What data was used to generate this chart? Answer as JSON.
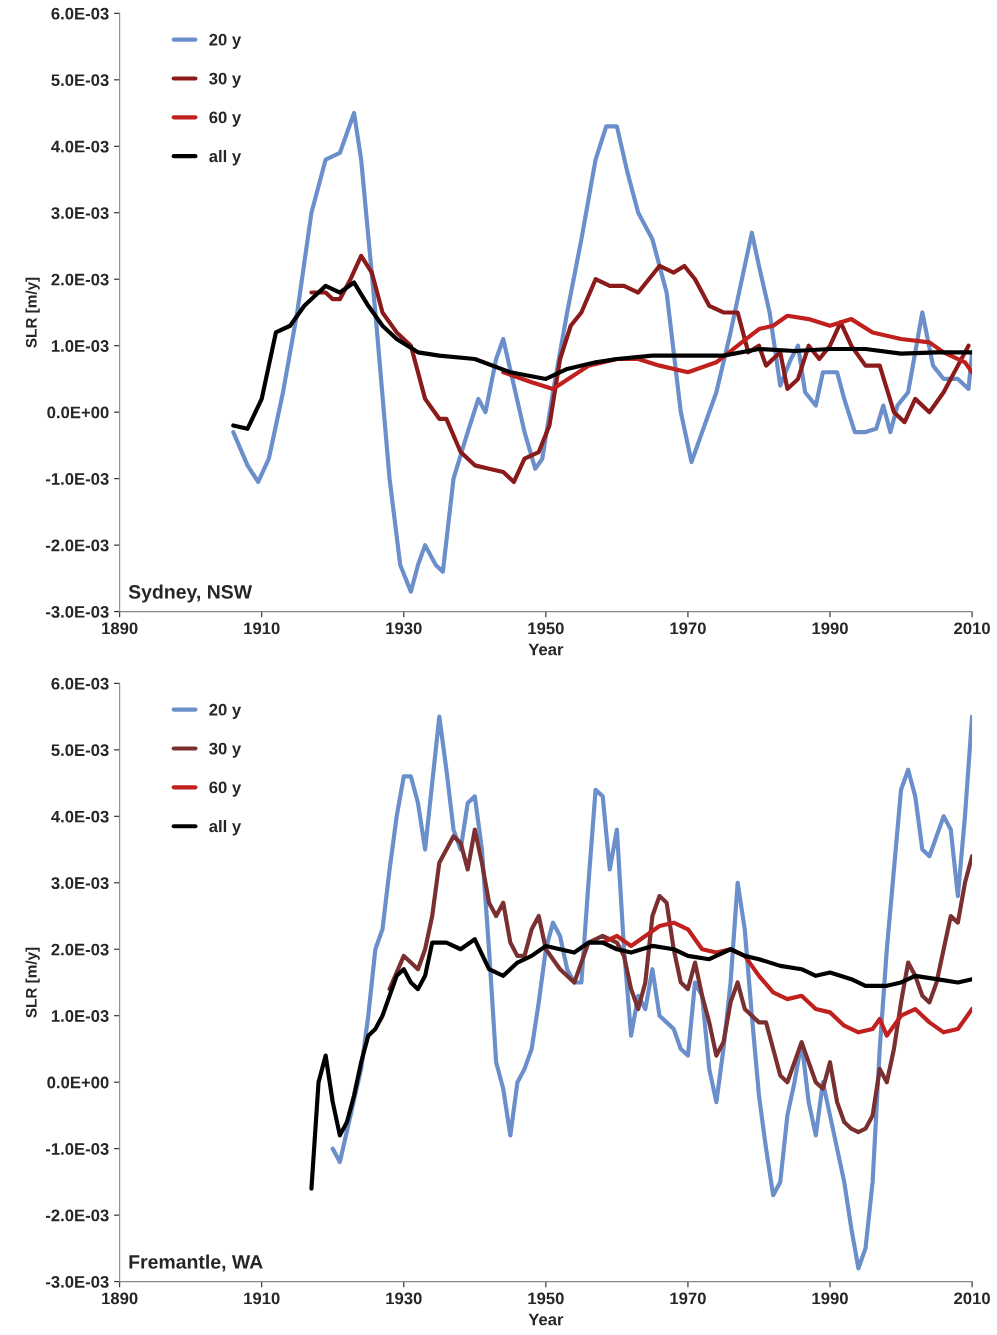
{
  "chart_data": [
    {
      "type": "line",
      "xlabel": "Year",
      "ylabel": "SLR [m/y]",
      "annotations": [
        "Sydney, NSW"
      ],
      "legend": "top left",
      "grid": false,
      "xlim": [
        1890,
        2010
      ],
      "xticks": [
        1890,
        1910,
        1930,
        1950,
        1970,
        1990,
        2010
      ],
      "ylim": [
        -0.003,
        0.006
      ],
      "yticks": [
        {
          "value": -0.003,
          "label": "-3.0E-03"
        },
        {
          "value": -0.002,
          "label": "-2.0E-03"
        },
        {
          "value": -0.001,
          "label": "-1.0E-03"
        },
        {
          "value": 0,
          "label": "0.0E+00"
        },
        {
          "value": 0.001,
          "label": "1.0E-03"
        },
        {
          "value": 0.002,
          "label": "2.0E-03"
        },
        {
          "value": 0.003,
          "label": "3.0E-03"
        },
        {
          "value": 0.004,
          "label": "4.0E-03"
        },
        {
          "value": 0.005,
          "label": "5.0E-03"
        },
        {
          "value": 0.006,
          "label": "6.0E-03"
        }
      ],
      "series": [
        {
          "name": "20 y",
          "color": "#6a8fca",
          "x": [
            1906,
            1908,
            1909.5,
            1911,
            1913,
            1915,
            1917,
            1918,
            1919,
            1921,
            1922,
            1923,
            1924,
            1926,
            1928,
            1929.5,
            1931,
            1932,
            1933,
            1934.5,
            1935.5,
            1937,
            1939,
            1940.5,
            1941.5,
            1943,
            1944,
            1945.5,
            1947,
            1948.5,
            1949.5,
            1951,
            1953,
            1955,
            1957,
            1958.5,
            1960,
            1961.5,
            1963,
            1965,
            1967,
            1969,
            1970.5,
            1972,
            1974,
            1976,
            1978,
            1979,
            1980,
            1981.5,
            1983,
            1984.5,
            1985.5,
            1986.5,
            1988,
            1989,
            1991,
            1992,
            1993.5,
            1995,
            1996.5,
            1997.5,
            1998.5,
            1999.5,
            2001,
            2003,
            2004.5,
            2006,
            2008,
            2009.5,
            2010
          ],
          "values": [
            -0.0003,
            -0.0008,
            -0.00105,
            -0.0007,
            0.0003,
            0.0015,
            0.003,
            0.0034,
            0.0038,
            0.0039,
            0.0042,
            0.0045,
            0.0038,
            0.0015,
            -0.001,
            -0.0023,
            -0.0027,
            -0.0023,
            -0.002,
            -0.0023,
            -0.0024,
            -0.001,
            -0.0003,
            0.0002,
            0.0,
            0.0008,
            0.0011,
            0.0004,
            -0.0003,
            -0.00085,
            -0.0007,
            0.0003,
            0.0015,
            0.0026,
            0.0038,
            0.0043,
            0.0043,
            0.0036,
            0.003,
            0.0026,
            0.0018,
            0.0,
            -0.00075,
            -0.0003,
            0.0003,
            0.0012,
            0.0022,
            0.0027,
            0.0022,
            0.0015,
            0.0004,
            0.0008,
            0.001,
            0.0003,
            0.0001,
            0.0006,
            0.0006,
            0.0002,
            -0.0003,
            -0.0003,
            -0.00025,
            0.0001,
            -0.0003,
            0.0001,
            0.0003,
            0.0015,
            0.0007,
            0.0005,
            0.0005,
            0.00035,
            0.0009
          ]
        },
        {
          "name": "30 y",
          "color": "#8b1a1a",
          "x": [
            1917,
            1919,
            1920,
            1921,
            1922.5,
            1924,
            1925.5,
            1927,
            1929,
            1931,
            1933,
            1935,
            1936,
            1938,
            1940,
            1942,
            1944,
            1945.5,
            1947,
            1949,
            1950.5,
            1952,
            1953.5,
            1955,
            1957,
            1959,
            1961,
            1963,
            1966,
            1968,
            1969.5,
            1971,
            1973,
            1975,
            1977,
            1978.5,
            1980,
            1981,
            1983,
            1984,
            1985.5,
            1987,
            1988.5,
            1990,
            1991.5,
            1993,
            1995,
            1997,
            1999,
            2000.5,
            2002,
            2004,
            2006,
            2008,
            2009.5
          ],
          "values": [
            0.0018,
            0.0018,
            0.0017,
            0.0017,
            0.002,
            0.00235,
            0.0021,
            0.0015,
            0.0012,
            0.001,
            0.0002,
            -0.0001,
            -0.0001,
            -0.0006,
            -0.0008,
            -0.00085,
            -0.0009,
            -0.00105,
            -0.0007,
            -0.0006,
            -0.0002,
            0.0008,
            0.0013,
            0.0015,
            0.002,
            0.0019,
            0.0019,
            0.0018,
            0.0022,
            0.0021,
            0.0022,
            0.002,
            0.0016,
            0.0015,
            0.0015,
            0.0009,
            0.001,
            0.0007,
            0.0009,
            0.00035,
            0.0005,
            0.001,
            0.0008,
            0.001,
            0.00135,
            0.001,
            0.0007,
            0.0007,
            0.0,
            -0.00015,
            0.0002,
            0.0,
            0.0003,
            0.0007,
            0.001
          ]
        },
        {
          "name": "60 y",
          "color": "#c0201e",
          "x": [
            1944,
            1948,
            1951,
            1956,
            1960,
            1963,
            1966,
            1970,
            1974,
            1977,
            1980,
            1982,
            1984,
            1987,
            1990,
            1993,
            1996,
            2000,
            2004,
            2006,
            2009,
            2010
          ],
          "values": [
            0.0006,
            0.00045,
            0.00035,
            0.0007,
            0.0008,
            0.0008,
            0.0007,
            0.0006,
            0.00075,
            0.001,
            0.00125,
            0.0013,
            0.00145,
            0.0014,
            0.0013,
            0.0014,
            0.0012,
            0.0011,
            0.00105,
            0.0009,
            0.00075,
            0.0006
          ]
        },
        {
          "name": "all y",
          "color": "#000000",
          "x": [
            1906,
            1908,
            1910,
            1912,
            1914,
            1916,
            1918,
            1919,
            1921,
            1923,
            1925,
            1927,
            1929,
            1932,
            1935,
            1940,
            1945,
            1950,
            1953,
            1957,
            1960,
            1965,
            1970,
            1975,
            1980,
            1985,
            1990,
            1995,
            2000,
            2005,
            2010
          ],
          "values": [
            -0.0002,
            -0.00025,
            0.0002,
            0.0012,
            0.0013,
            0.0016,
            0.0018,
            0.0019,
            0.0018,
            0.00195,
            0.0016,
            0.0013,
            0.0011,
            0.0009,
            0.00085,
            0.0008,
            0.0006,
            0.0005,
            0.00065,
            0.00075,
            0.0008,
            0.00085,
            0.00085,
            0.00085,
            0.00095,
            0.00092,
            0.00095,
            0.00095,
            0.00088,
            0.0009,
            0.0009
          ]
        }
      ]
    },
    {
      "type": "line",
      "xlabel": "Year",
      "ylabel": "SLR [m/y]",
      "annotations": [
        "Fremantle, WA"
      ],
      "legend": "top left",
      "grid": false,
      "xlim": [
        1890,
        2010
      ],
      "xticks": [
        1890,
        1910,
        1930,
        1950,
        1970,
        1990,
        2010
      ],
      "ylim": [
        -0.003,
        0.006
      ],
      "yticks": [
        {
          "value": -0.003,
          "label": "-3.0E-03"
        },
        {
          "value": -0.002,
          "label": "-2.0E-03"
        },
        {
          "value": -0.001,
          "label": "-1.0E-03"
        },
        {
          "value": 0,
          "label": "0.0E+00"
        },
        {
          "value": 0.001,
          "label": "1.0E-03"
        },
        {
          "value": 0.002,
          "label": "2.0E-03"
        },
        {
          "value": 0.003,
          "label": "3.0E-03"
        },
        {
          "value": 0.004,
          "label": "4.0E-03"
        },
        {
          "value": 0.005,
          "label": "5.0E-03"
        },
        {
          "value": 0.006,
          "label": "6.0E-03"
        }
      ],
      "series": [
        {
          "name": "20 y",
          "color": "#6a8fca",
          "x": [
            1920,
            1921,
            1922.5,
            1924,
            1925,
            1926,
            1927,
            1928,
            1929,
            1930,
            1931,
            1932,
            1933,
            1934,
            1935,
            1936,
            1937,
            1938,
            1939,
            1940,
            1941,
            1942,
            1943,
            1944,
            1945,
            1946,
            1947,
            1948,
            1949,
            1950,
            1951,
            1952,
            1953,
            1954,
            1955,
            1956,
            1957,
            1958,
            1959,
            1960,
            1961,
            1962,
            1963,
            1964,
            1965,
            1966,
            1967,
            1968,
            1969,
            1970,
            1971,
            1972,
            1973,
            1974,
            1975,
            1976,
            1977,
            1978,
            1979,
            1980,
            1981,
            1982,
            1983,
            1984,
            1985,
            1986,
            1987,
            1988,
            1989,
            1990,
            1991,
            1992,
            1993,
            1994,
            1995,
            1996,
            1997,
            1998,
            1999,
            2000,
            2001,
            2002,
            2003,
            2004,
            2005,
            2006,
            2007,
            2008,
            2009,
            2010
          ],
          "values": [
            -0.001,
            -0.0012,
            -0.0005,
            0.0002,
            0.001,
            0.002,
            0.0023,
            0.0032,
            0.004,
            0.0046,
            0.0046,
            0.0042,
            0.0035,
            0.0045,
            0.0055,
            0.0047,
            0.0038,
            0.0035,
            0.0042,
            0.0043,
            0.0035,
            0.002,
            0.0003,
            -0.0001,
            -0.0008,
            0.0,
            0.0002,
            0.0005,
            0.0012,
            0.002,
            0.0024,
            0.0022,
            0.0017,
            0.0015,
            0.0015,
            0.003,
            0.0044,
            0.0043,
            0.0032,
            0.0038,
            0.002,
            0.0007,
            0.0013,
            0.0011,
            0.0017,
            0.001,
            0.0009,
            0.0008,
            0.0005,
            0.0004,
            0.0015,
            0.0013,
            0.0002,
            -0.0003,
            0.0005,
            0.0015,
            0.003,
            0.0023,
            0.001,
            -0.0002,
            -0.001,
            -0.0017,
            -0.0015,
            -0.0005,
            0.0,
            0.0006,
            -0.0003,
            -0.0008,
            0.0,
            -0.0005,
            -0.001,
            -0.0015,
            -0.0022,
            -0.0028,
            -0.0025,
            -0.0015,
            0.0005,
            0.002,
            0.0032,
            0.0044,
            0.0047,
            0.0043,
            0.0035,
            0.0034,
            0.0037,
            0.004,
            0.0038,
            0.0028,
            0.004,
            0.0055
          ]
        },
        {
          "name": "30 y",
          "color": "#7a3030",
          "x": [
            1928,
            1930,
            1931,
            1932,
            1933,
            1934,
            1935,
            1936,
            1937,
            1938,
            1939,
            1940,
            1941,
            1942,
            1943,
            1944,
            1945,
            1946,
            1947,
            1948,
            1949,
            1950,
            1952,
            1954,
            1956,
            1958,
            1960,
            1961,
            1962,
            1963,
            1964,
            1965,
            1966,
            1967,
            1968,
            1969,
            1970,
            1971,
            1972,
            1973,
            1974,
            1975,
            1976,
            1977,
            1978,
            1980,
            1981,
            1982,
            1983,
            1984,
            1985,
            1986,
            1987,
            1988,
            1989,
            1990,
            1991,
            1992,
            1993,
            1994,
            1995,
            1996,
            1997,
            1998,
            1999,
            2000,
            2001,
            2002,
            2003,
            2004,
            2005,
            2006,
            2007,
            2008,
            2009,
            2010
          ],
          "values": [
            0.0014,
            0.0019,
            0.0018,
            0.0017,
            0.002,
            0.0025,
            0.0033,
            0.0035,
            0.0037,
            0.0036,
            0.0032,
            0.0038,
            0.0033,
            0.0027,
            0.0025,
            0.0027,
            0.0021,
            0.0019,
            0.0019,
            0.0023,
            0.0025,
            0.002,
            0.0017,
            0.0015,
            0.0021,
            0.0022,
            0.0021,
            0.0019,
            0.0014,
            0.0011,
            0.0015,
            0.0025,
            0.0028,
            0.0027,
            0.002,
            0.0015,
            0.0014,
            0.0018,
            0.0013,
            0.0009,
            0.0004,
            0.0006,
            0.0012,
            0.0015,
            0.0011,
            0.0009,
            0.0009,
            0.0005,
            0.0001,
            0.0,
            0.0003,
            0.0006,
            0.0003,
            0.0,
            -0.0001,
            0.0003,
            -0.0003,
            -0.0006,
            -0.0007,
            -0.00075,
            -0.0007,
            -0.0005,
            0.0002,
            0.0,
            0.0005,
            0.0012,
            0.0018,
            0.0016,
            0.0013,
            0.0012,
            0.0015,
            0.002,
            0.0025,
            0.0024,
            0.003,
            0.0034
          ]
        },
        {
          "name": "60 y",
          "color": "#c0201e",
          "x": [
            1958,
            1960,
            1962,
            1964,
            1966,
            1968,
            1970,
            1972,
            1974,
            1976,
            1978,
            1980,
            1982,
            1984,
            1986,
            1988,
            1990,
            1992,
            1994,
            1996,
            1997,
            1998,
            2000,
            2002,
            2004,
            2006,
            2008,
            2010
          ],
          "values": [
            0.0021,
            0.0022,
            0.00205,
            0.0022,
            0.00235,
            0.0024,
            0.0023,
            0.002,
            0.00195,
            0.002,
            0.0019,
            0.0016,
            0.00135,
            0.00125,
            0.0013,
            0.0011,
            0.00105,
            0.00085,
            0.00075,
            0.0008,
            0.00095,
            0.0007,
            0.001,
            0.0011,
            0.0009,
            0.00075,
            0.0008,
            0.0011
          ]
        },
        {
          "name": "all y",
          "color": "#000000",
          "x": [
            1917,
            1918,
            1919,
            1920,
            1921,
            1922,
            1923,
            1924,
            1925,
            1926,
            1927,
            1928,
            1929,
            1930,
            1931,
            1932,
            1933,
            1934,
            1936,
            1938,
            1940,
            1942,
            1944,
            1946,
            1948,
            1950,
            1952,
            1954,
            1956,
            1958,
            1960,
            1962,
            1965,
            1968,
            1970,
            1973,
            1976,
            1978,
            1980,
            1983,
            1986,
            1988,
            1990,
            1993,
            1995,
            1998,
            2000,
            2002,
            2005,
            2008,
            2010
          ],
          "values": [
            -0.0016,
            0.0,
            0.0004,
            -0.0003,
            -0.0008,
            -0.0006,
            -0.0002,
            0.0003,
            0.0007,
            0.0008,
            0.001,
            0.0013,
            0.0016,
            0.0017,
            0.0015,
            0.0014,
            0.0016,
            0.0021,
            0.0021,
            0.002,
            0.00215,
            0.0017,
            0.0016,
            0.0018,
            0.0019,
            0.00205,
            0.002,
            0.00195,
            0.0021,
            0.0021,
            0.002,
            0.00195,
            0.00205,
            0.002,
            0.0019,
            0.00185,
            0.002,
            0.0019,
            0.00185,
            0.00175,
            0.0017,
            0.0016,
            0.00165,
            0.00155,
            0.00145,
            0.00145,
            0.0015,
            0.0016,
            0.00155,
            0.0015,
            0.00155
          ]
        }
      ]
    }
  ]
}
